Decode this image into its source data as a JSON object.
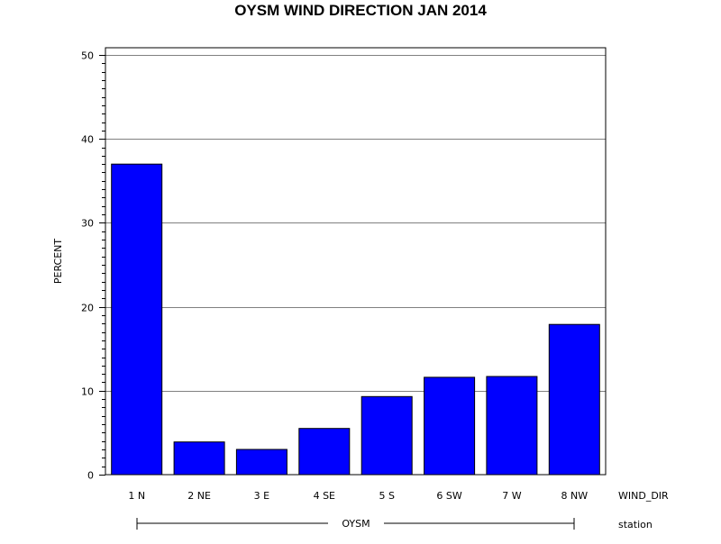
{
  "chart_data": {
    "type": "bar",
    "title": "OYSM WIND DIRECTION JAN 2014",
    "ylabel": "PERCENT",
    "xlabel": "WIND_DIR",
    "group_axis_label": "station",
    "group_label": "OYSM",
    "categories": [
      "1 N",
      "2 NE",
      "3 E",
      "4 SE",
      "5 S",
      "6 SW",
      "7 W",
      "8 NW"
    ],
    "values": [
      37.0,
      3.9,
      3.0,
      5.5,
      9.3,
      11.6,
      11.7,
      17.9
    ],
    "ylim": [
      0,
      50
    ],
    "yticks": [
      0,
      10,
      20,
      30,
      40,
      50
    ],
    "yminor_step": 1,
    "grid": true,
    "legend": "none",
    "colors": {
      "bar": "#0000ff",
      "bar_edge": "#000000",
      "grid": "#808080"
    }
  }
}
